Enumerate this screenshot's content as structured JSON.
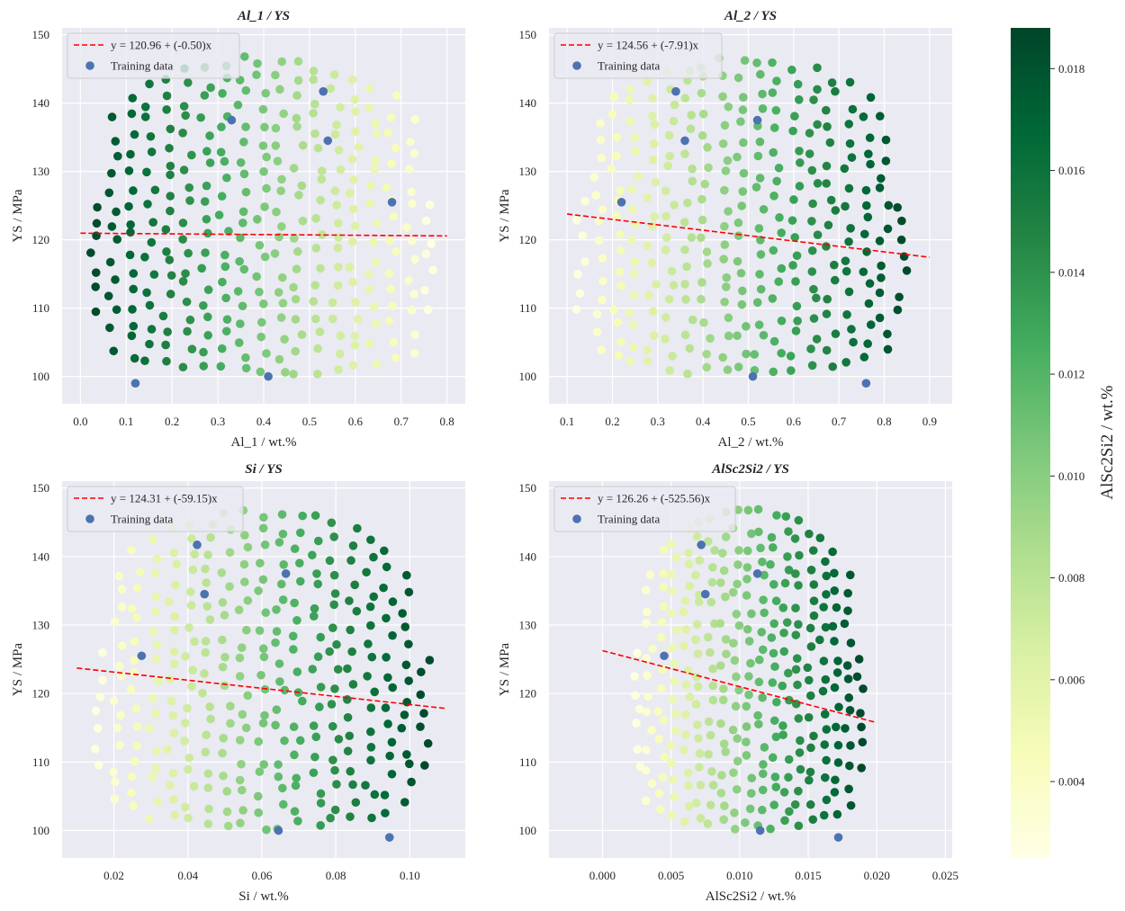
{
  "chart_data": [
    {
      "type": "scatter",
      "title": "Al_1 / YS",
      "xlabel": "Al_1 / wt.%",
      "ylabel": "YS / MPa",
      "xlim": [
        -0.04,
        0.84
      ],
      "ylim": [
        96,
        151
      ],
      "xticks": [
        "0.0",
        "0.1",
        "0.2",
        "0.3",
        "0.4",
        "0.5",
        "0.6",
        "0.7",
        "0.8"
      ],
      "xtick_values": [
        0,
        0.1,
        0.2,
        0.3,
        0.4,
        0.5,
        0.6,
        0.7,
        0.8
      ],
      "yticks": [
        "100",
        "110",
        "120",
        "130",
        "140",
        "150"
      ],
      "ytick_values": [
        100,
        110,
        120,
        130,
        140,
        150
      ],
      "fit_label": "y = 120.96 + (-0.50)x",
      "fit": {
        "intercept": 120.96,
        "slope": -0.5,
        "x_range": [
          0.0,
          0.8
        ]
      },
      "training_label": "Training data",
      "training_data": [
        [
          0.12,
          99
        ],
        [
          0.33,
          137.5
        ],
        [
          0.41,
          100
        ],
        [
          0.53,
          141.7
        ],
        [
          0.54,
          134.5
        ],
        [
          0.68,
          125.5
        ]
      ],
      "cloud": {
        "x_range": [
          0.03,
          0.76
        ],
        "color_map": [
          [
            0.03,
            0.0185
          ],
          [
            0.76,
            0.0028
          ]
        ]
      }
    },
    {
      "type": "scatter",
      "title": "Al_2 / YS",
      "xlabel": "Al_2 / wt.%",
      "ylabel": "YS / MPa",
      "xlim": [
        0.06,
        0.95
      ],
      "ylim": [
        96,
        151
      ],
      "xticks": [
        "0.1",
        "0.2",
        "0.3",
        "0.4",
        "0.5",
        "0.6",
        "0.7",
        "0.8",
        "0.9"
      ],
      "xtick_values": [
        0.1,
        0.2,
        0.3,
        0.4,
        0.5,
        0.6,
        0.7,
        0.8,
        0.9
      ],
      "yticks": [
        "100",
        "110",
        "120",
        "130",
        "140",
        "150"
      ],
      "ytick_values": [
        100,
        110,
        120,
        130,
        140,
        150
      ],
      "fit_label": "y = 124.56 + (-7.91)x",
      "fit": {
        "intercept": 124.56,
        "slope": -7.91,
        "x_range": [
          0.1,
          0.9
        ]
      },
      "training_label": "Training data",
      "training_data": [
        [
          0.22,
          125.5
        ],
        [
          0.34,
          141.7
        ],
        [
          0.36,
          134.5
        ],
        [
          0.51,
          100
        ],
        [
          0.52,
          137.5
        ],
        [
          0.76,
          99
        ]
      ],
      "cloud": {
        "x_range": [
          0.13,
          0.84
        ],
        "color_map": [
          [
            0.13,
            0.0028
          ],
          [
            0.84,
            0.0185
          ]
        ]
      }
    },
    {
      "type": "scatter",
      "title": "Si / YS",
      "xlabel": "Si / wt.%",
      "ylabel": "YS / MPa",
      "xlim": [
        0.006,
        0.115
      ],
      "ylim": [
        96,
        151
      ],
      "xticks": [
        "0.02",
        "0.04",
        "0.06",
        "0.08",
        "0.10"
      ],
      "xtick_values": [
        0.02,
        0.04,
        0.06,
        0.08,
        0.1
      ],
      "yticks": [
        "100",
        "110",
        "120",
        "130",
        "140",
        "150"
      ],
      "ytick_values": [
        100,
        110,
        120,
        130,
        140,
        150
      ],
      "fit_label": "y = 124.31 + (-59.15)x",
      "fit": {
        "intercept": 124.31,
        "slope": -59.15,
        "x_range": [
          0.01,
          0.11
        ]
      },
      "training_label": "Training data",
      "training_data": [
        [
          0.0275,
          125.5
        ],
        [
          0.0425,
          141.7
        ],
        [
          0.0445,
          134.5
        ],
        [
          0.0645,
          100
        ],
        [
          0.0665,
          137.5
        ],
        [
          0.0945,
          99
        ]
      ],
      "cloud": {
        "x_range": [
          0.016,
          0.104
        ],
        "color_map": [
          [
            0.016,
            0.0028
          ],
          [
            0.104,
            0.0185
          ]
        ]
      }
    },
    {
      "type": "scatter",
      "title": "AlSc2Si2 / YS",
      "xlabel": "AlSc2Si2 / wt.%",
      "ylabel": "YS / MPa",
      "xlim": [
        -0.0039,
        0.0255
      ],
      "ylim": [
        96,
        151
      ],
      "xticks": [
        "0.000",
        "0.005",
        "0.010",
        "0.015",
        "0.020",
        "0.025"
      ],
      "xtick_values": [
        0,
        0.005,
        0.01,
        0.015,
        0.02,
        0.025
      ],
      "yticks": [
        "100",
        "110",
        "120",
        "130",
        "140",
        "150"
      ],
      "ytick_values": [
        100,
        110,
        120,
        130,
        140,
        150
      ],
      "fit_label": "y = 126.26 + (-525.56)x",
      "fit": {
        "intercept": 126.26,
        "slope": -525.56,
        "x_range": [
          0.0,
          0.02
        ]
      },
      "training_label": "Training data",
      "training_data": [
        [
          0.0045,
          125.5
        ],
        [
          0.0072,
          141.7
        ],
        [
          0.0075,
          134.5
        ],
        [
          0.0113,
          137.5
        ],
        [
          0.0115,
          100
        ],
        [
          0.0172,
          99
        ]
      ],
      "cloud": {
        "x_range": [
          0.0025,
          0.0188
        ],
        "color_map": [
          [
            0.0025,
            0.0028
          ],
          [
            0.0188,
            0.0185
          ]
        ]
      }
    }
  ],
  "colorbar": {
    "label": "AlSc2Si2 / wt.%",
    "range": [
      0.0025,
      0.0188
    ],
    "ticks": [
      "0.004",
      "0.006",
      "0.008",
      "0.010",
      "0.012",
      "0.014",
      "0.016",
      "0.018"
    ],
    "tick_values": [
      0.004,
      0.006,
      0.008,
      0.01,
      0.012,
      0.014,
      0.016,
      0.018
    ],
    "colormap": "YlGn",
    "stops": [
      "#ffffe5",
      "#f7fcb9",
      "#d9f0a3",
      "#addd8e",
      "#78c679",
      "#41ab5d",
      "#238443",
      "#006837",
      "#004529"
    ]
  },
  "colors": {
    "plot_bg": "#eaeaf2",
    "grid": "#ffffff",
    "fit_line": "#ff0000",
    "training": "#4c72b0"
  }
}
